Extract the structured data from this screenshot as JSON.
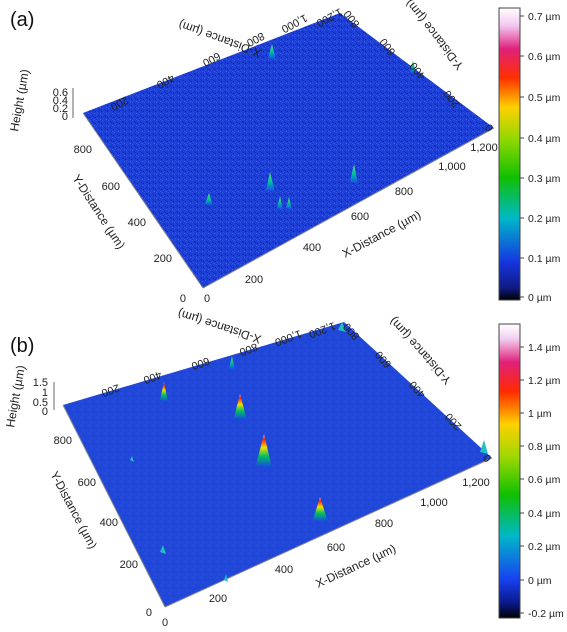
{
  "panels": [
    {
      "label": "(a)",
      "height_axis": {
        "title": "Height (µm)",
        "ticks": [
          "0.6",
          "0.4",
          "0.2",
          "0"
        ]
      },
      "y_axis": {
        "title": "Y-Distance (µm)",
        "ticks": [
          "800",
          "600",
          "400",
          "200",
          "0"
        ]
      },
      "x_axis": {
        "title": "X-Distance (µm)",
        "ticks": [
          "0",
          "200",
          "400",
          "600",
          "800",
          "1,000",
          "1,200"
        ]
      },
      "back_x_axis": {
        "title": "X-Distance (µm)",
        "ticks": [
          "200",
          "400",
          "600",
          "800",
          "1,000",
          "1,200"
        ]
      },
      "back_y_axis": {
        "title": "Y-Distance (µm)",
        "ticks": [
          "0",
          "200",
          "400",
          "600",
          "800"
        ]
      },
      "colorbar": {
        "ticks": [
          "0.7 µm",
          "0.6 µm",
          "0.5 µm",
          "0.4 µm",
          "0.3 µm",
          "0.2 µm",
          "0.1 µm",
          "0 µm"
        ]
      }
    },
    {
      "label": "(b)",
      "height_axis": {
        "title": "Height (µm)",
        "ticks": [
          "1.5",
          "1",
          "0.5",
          "0"
        ]
      },
      "y_axis": {
        "title": "Y-Distance (µm)",
        "ticks": [
          "800",
          "600",
          "400",
          "200",
          "0"
        ]
      },
      "x_axis": {
        "title": "X-Distance (µm)",
        "ticks": [
          "0",
          "200",
          "400",
          "600",
          "800",
          "1,000",
          "1,200"
        ]
      },
      "back_x_axis": {
        "title": "X-Distance (µm)",
        "ticks": [
          "200",
          "400",
          "600",
          "800",
          "1,000",
          "1,200"
        ]
      },
      "back_y_axis": {
        "title": "Y-Distance (µm)",
        "ticks": [
          "0",
          "200",
          "400",
          "600",
          "800"
        ]
      },
      "colorbar": {
        "ticks": [
          "1.4 µm",
          "1.2 µm",
          "1 µm",
          "0.8 µm",
          "0.6 µm",
          "0.4 µm",
          "0.2 µm",
          "0 µm",
          "-0.2 µm"
        ]
      }
    }
  ],
  "colors": {
    "surface": "#1a3cd8",
    "surface_dark": "#0f2aa8"
  }
}
